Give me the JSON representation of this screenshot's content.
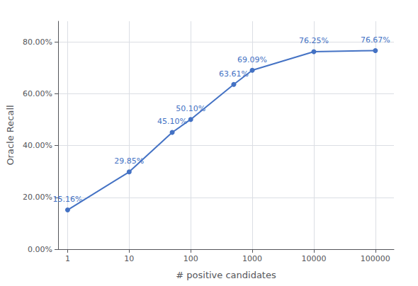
{
  "chart_data": {
    "type": "line",
    "xlabel": "# positive candidates",
    "ylabel": "Oracle Recall",
    "x": [
      1,
      10,
      50,
      100,
      500,
      1000,
      10000,
      100000
    ],
    "values": [
      0.1516,
      0.2985,
      0.451,
      0.501,
      0.6361,
      0.6909,
      0.7625,
      0.7667
    ],
    "value_labels": [
      "15.16%",
      "29.85%",
      "45.10%",
      "50.10%",
      "63.61%",
      "69.09%",
      "76.25%",
      "76.67%"
    ],
    "data_labels": true,
    "color": "#4472c4",
    "marker": "circle",
    "log": "x",
    "xlim": [
      0.7,
      200000
    ],
    "xticks": [
      1,
      10,
      100,
      1000,
      10000,
      100000
    ],
    "ylim": [
      0,
      0.88
    ],
    "yticks": [
      {
        "value": 0,
        "label": "0.00%"
      },
      {
        "value": 0.2,
        "label": "20.00%"
      },
      {
        "value": 0.4,
        "label": "40.00%"
      },
      {
        "value": 0.6,
        "label": "60.00%"
      },
      {
        "value": 0.8,
        "label": "80.00%"
      }
    ],
    "grid": true
  }
}
